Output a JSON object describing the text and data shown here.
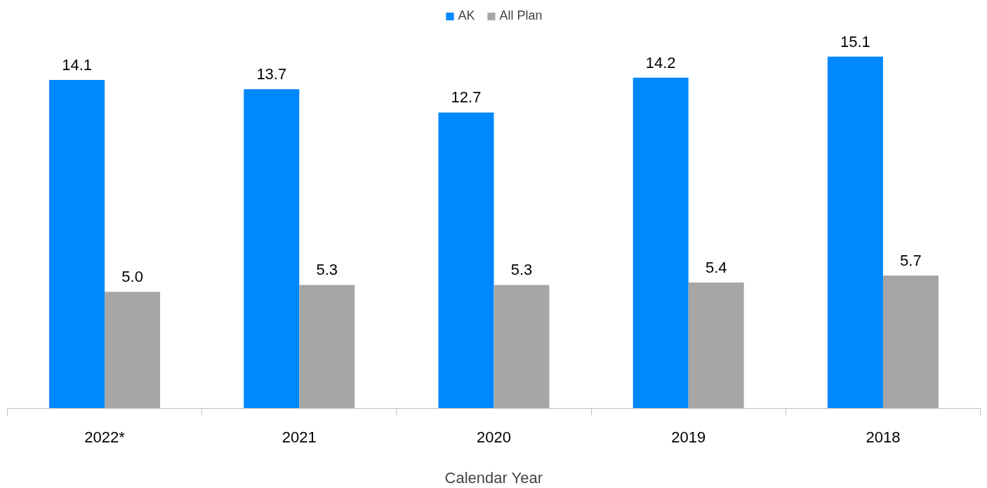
{
  "chart_data": {
    "type": "bar",
    "xlabel": "Calendar Year",
    "categories": [
      "2022*",
      "2021",
      "2020",
      "2019",
      "2018"
    ],
    "series": [
      {
        "name": "AK",
        "color": "#0088ff",
        "values": [
          14.1,
          13.7,
          12.7,
          14.2,
          15.1
        ],
        "value_labels": [
          "14.1",
          "13.7",
          "12.7",
          "14.2",
          "15.1"
        ]
      },
      {
        "name": "All Plan",
        "color": "#a6a6a6",
        "values": [
          5.0,
          5.3,
          5.3,
          5.4,
          5.7
        ],
        "value_labels": [
          "5.0",
          "5.3",
          "5.3",
          "5.4",
          "5.7"
        ]
      }
    ],
    "legend": "top",
    "grid": false
  }
}
